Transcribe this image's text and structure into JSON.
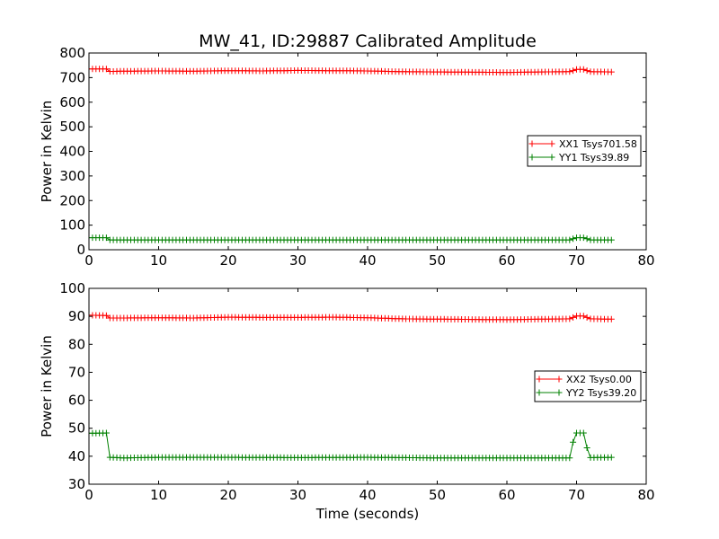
{
  "chart_data": [
    {
      "type": "line",
      "title": "MW_41, ID:29887 Calibrated Amplitude",
      "xlabel": "",
      "ylabel": "Power in Kelvin",
      "xlim": [
        0,
        80
      ],
      "ylim": [
        0,
        800
      ],
      "xticks": [
        0,
        10,
        20,
        30,
        40,
        50,
        60,
        70,
        80
      ],
      "yticks": [
        0,
        100,
        200,
        300,
        400,
        500,
        600,
        700,
        800
      ],
      "grid": false,
      "legend_position": "center-right",
      "series": [
        {
          "name": "XX1 Tsys701.58",
          "color": "#ff0000",
          "marker": "+",
          "x": [
            0,
            2.5,
            3,
            5,
            10,
            15,
            20,
            25,
            30,
            35,
            40,
            45,
            50,
            55,
            60,
            65,
            69,
            70,
            71,
            72,
            75
          ],
          "y": [
            735,
            735,
            725,
            726,
            727,
            726,
            728,
            727,
            729,
            728,
            727,
            724,
            723,
            722,
            721,
            723,
            724,
            733,
            733,
            724,
            723
          ]
        },
        {
          "name": "YY1 Tsys39.89",
          "color": "#008000",
          "marker": "+",
          "x": [
            0,
            2.5,
            3,
            5,
            10,
            20,
            30,
            40,
            50,
            60,
            69,
            70,
            71,
            72,
            75
          ],
          "y": [
            49,
            49,
            40,
            40,
            40,
            40,
            40,
            40,
            40,
            40,
            40,
            49,
            49,
            40,
            40
          ]
        }
      ]
    },
    {
      "type": "line",
      "title": "",
      "xlabel": "Time (seconds)",
      "ylabel": "Power in Kelvin",
      "xlim": [
        0,
        80
      ],
      "ylim": [
        30,
        100
      ],
      "xticks": [
        0,
        10,
        20,
        30,
        40,
        50,
        60,
        70,
        80
      ],
      "yticks": [
        30,
        40,
        50,
        60,
        70,
        80,
        90,
        100
      ],
      "grid": false,
      "legend_position": "center-right",
      "series": [
        {
          "name": "XX2 Tsys0.00",
          "color": "#ff0000",
          "marker": "+",
          "x": [
            0,
            2.5,
            3,
            5,
            10,
            15,
            20,
            25,
            30,
            35,
            40,
            45,
            50,
            55,
            60,
            65,
            69,
            70,
            71,
            72,
            75
          ],
          "y": [
            90.4,
            90.3,
            89.4,
            89.4,
            89.5,
            89.4,
            89.7,
            89.6,
            89.6,
            89.7,
            89.5,
            89.1,
            89.0,
            88.9,
            88.8,
            89.0,
            89.1,
            90.1,
            90.1,
            89.1,
            89.0
          ]
        },
        {
          "name": "YY2 Tsys39.20",
          "color": "#008000",
          "marker": "+",
          "x": [
            0,
            2.5,
            3,
            5,
            10,
            20,
            30,
            40,
            50,
            60,
            69,
            69.5,
            70,
            71,
            71.5,
            72,
            75
          ],
          "y": [
            48.2,
            48.3,
            39.6,
            39.4,
            39.6,
            39.6,
            39.5,
            39.6,
            39.4,
            39.4,
            39.4,
            45,
            48.3,
            48.3,
            43,
            39.5,
            39.6
          ]
        }
      ]
    }
  ]
}
